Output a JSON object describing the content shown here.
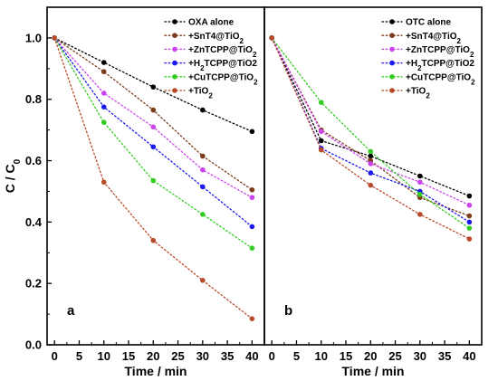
{
  "chart_data": [
    {
      "type": "line",
      "panel_label": "a",
      "xlabel": "Time / min",
      "ylabel": "C / C",
      "ylabel_subscript": "0",
      "xlim": [
        -1.5,
        42.5
      ],
      "ylim": [
        0.0,
        1.1
      ],
      "x_ticks": [
        "0",
        "5",
        "10",
        "15",
        "20",
        "25",
        "30",
        "35",
        "40"
      ],
      "y_ticks": [
        "0.0",
        "0.2",
        "0.4",
        "0.6",
        "0.8",
        "1.0"
      ],
      "grid": false,
      "legend_position": "top-right",
      "x": [
        0,
        10,
        20,
        30,
        40
      ],
      "series": [
        {
          "name": "OXA alone",
          "color": "#000000",
          "values": [
            1.0,
            0.92,
            0.84,
            0.765,
            0.695
          ]
        },
        {
          "name": "+SnT4@TiO",
          "name_sub": "2",
          "name_suffix": "",
          "color": "#7b3b1c",
          "values": [
            1.0,
            0.89,
            0.765,
            0.615,
            0.505
          ]
        },
        {
          "name": "+ZnTCPP@TiO",
          "name_sub": "2",
          "name_suffix": "",
          "color": "#cc44ee",
          "values": [
            1.0,
            0.82,
            0.71,
            0.57,
            0.48
          ]
        },
        {
          "name": "+H",
          "name_sub": "2",
          "name_suffix": "TCPP@TiO2",
          "color": "#1a1aee",
          "values": [
            1.0,
            0.775,
            0.645,
            0.515,
            0.385
          ]
        },
        {
          "name": "+CuTCPP@TiO",
          "name_sub": "2",
          "name_suffix": "",
          "color": "#33cc22",
          "values": [
            1.0,
            0.725,
            0.535,
            0.425,
            0.315
          ]
        },
        {
          "name": "+TiO",
          "name_sub": "2",
          "name_suffix": "",
          "color": "#b84a2a",
          "values": [
            1.0,
            0.53,
            0.34,
            0.21,
            0.085
          ]
        }
      ]
    },
    {
      "type": "line",
      "panel_label": "b",
      "xlabel": "Time / min",
      "xlim": [
        -1.5,
        42.5
      ],
      "ylim": [
        0.0,
        1.1
      ],
      "x_ticks": [
        "0",
        "5",
        "10",
        "15",
        "20",
        "25",
        "30",
        "35",
        "40"
      ],
      "grid": false,
      "legend_position": "top-right",
      "x": [
        0,
        10,
        20,
        30,
        40
      ],
      "series": [
        {
          "name": "OTC alone",
          "color": "#000000",
          "values": [
            1.0,
            0.665,
            0.615,
            0.55,
            0.485
          ]
        },
        {
          "name": "+SnT4@TiO",
          "name_sub": "2",
          "name_suffix": "",
          "color": "#7b3b1c",
          "values": [
            1.0,
            0.7,
            0.6,
            0.48,
            0.42
          ]
        },
        {
          "name": "+ZnTCPP@TiO",
          "name_sub": "2",
          "name_suffix": "",
          "color": "#cc44ee",
          "values": [
            1.0,
            0.695,
            0.59,
            0.53,
            0.455
          ]
        },
        {
          "name": "+H",
          "name_sub": "2",
          "name_suffix": "TCPP@TiO2",
          "color": "#1a1aee",
          "values": [
            1.0,
            0.64,
            0.56,
            0.5,
            0.4
          ]
        },
        {
          "name": "+CuTCPP@TiO",
          "name_sub": "2",
          "name_suffix": "",
          "color": "#33cc22",
          "values": [
            1.0,
            0.79,
            0.63,
            0.49,
            0.38
          ]
        },
        {
          "name": "+TiO",
          "name_sub": "2",
          "name_suffix": "",
          "color": "#b84a2a",
          "values": [
            1.0,
            0.635,
            0.52,
            0.425,
            0.345
          ]
        }
      ]
    }
  ]
}
